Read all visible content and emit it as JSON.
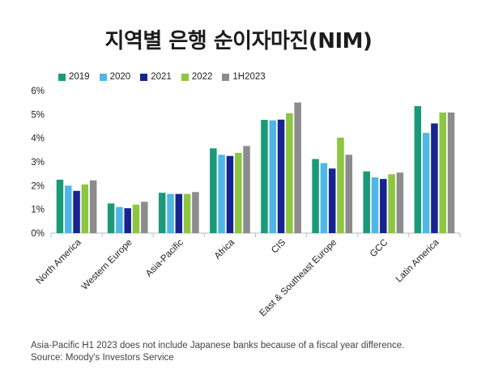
{
  "title": "지역별 은행 순이자마진(NIM)",
  "notes": {
    "line1": "Asia-Pacific H1 2023 does not include Japanese banks because of a fiscal year difference.",
    "line2": "Source: Moody's Investors Service"
  },
  "chart_data": {
    "type": "bar",
    "categories": [
      "North America",
      "Western Europe",
      "Asia-Pacific",
      "Africa",
      "CIS",
      "East & Southeast Europe",
      "GCC",
      "Latin America"
    ],
    "series": [
      {
        "name": "2019",
        "color": "#1a9a78",
        "values": [
          2.25,
          1.25,
          1.7,
          3.57,
          4.77,
          3.12,
          2.6,
          5.35
        ]
      },
      {
        "name": "2020",
        "color": "#4fb7e6",
        "values": [
          2.0,
          1.1,
          1.65,
          3.3,
          4.75,
          2.95,
          2.35,
          4.22
        ]
      },
      {
        "name": "2021",
        "color": "#17248f",
        "values": [
          1.78,
          1.05,
          1.65,
          3.25,
          4.78,
          2.72,
          2.28,
          4.62
        ]
      },
      {
        "name": "2022",
        "color": "#8dc63f",
        "values": [
          2.05,
          1.2,
          1.65,
          3.38,
          5.05,
          4.02,
          2.48,
          5.08
        ]
      },
      {
        "name": "1H2023",
        "color": "#8c8c8c",
        "values": [
          2.22,
          1.32,
          1.73,
          3.67,
          5.5,
          3.3,
          2.55,
          5.08
        ]
      }
    ],
    "yticks": [
      "0%",
      "1%",
      "2%",
      "3%",
      "4%",
      "5%",
      "6%"
    ],
    "ylim": [
      0,
      6
    ],
    "legend_position": "top-left",
    "grid": false
  }
}
